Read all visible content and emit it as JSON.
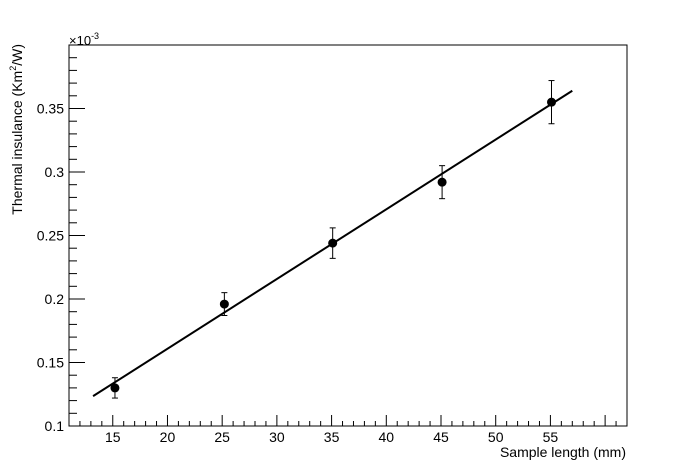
{
  "chart_data": {
    "type": "scatter",
    "title": "",
    "xlabel": "Sample length (mm)",
    "ylabel_main": "Thermal insulance (Km",
    "ylabel_sup": "2",
    "ylabel_tail": "/W)",
    "exponent_base": "×10",
    "exponent_power": "-3",
    "xlim": [
      11,
      62
    ],
    "ylim": [
      0.1,
      0.4
    ],
    "xticks": [
      15,
      20,
      25,
      30,
      35,
      40,
      45,
      50,
      55
    ],
    "yticks": [
      0.1,
      0.15,
      0.2,
      0.25,
      0.3,
      0.35
    ],
    "ytick_labels": [
      "0.1",
      "0.15",
      "0.2",
      "0.25",
      "0.3",
      "0.35"
    ],
    "grid": false,
    "points": [
      {
        "x": 15.2,
        "y": 0.13,
        "err": 0.008
      },
      {
        "x": 25.2,
        "y": 0.196,
        "err": 0.009
      },
      {
        "x": 35.1,
        "y": 0.244,
        "err": 0.012
      },
      {
        "x": 45.1,
        "y": 0.292,
        "err": 0.013
      },
      {
        "x": 55.1,
        "y": 0.355,
        "err": 0.017
      }
    ],
    "fit_line": {
      "x": [
        13.2,
        57.0
      ],
      "y": [
        0.1235,
        0.364
      ]
    }
  }
}
